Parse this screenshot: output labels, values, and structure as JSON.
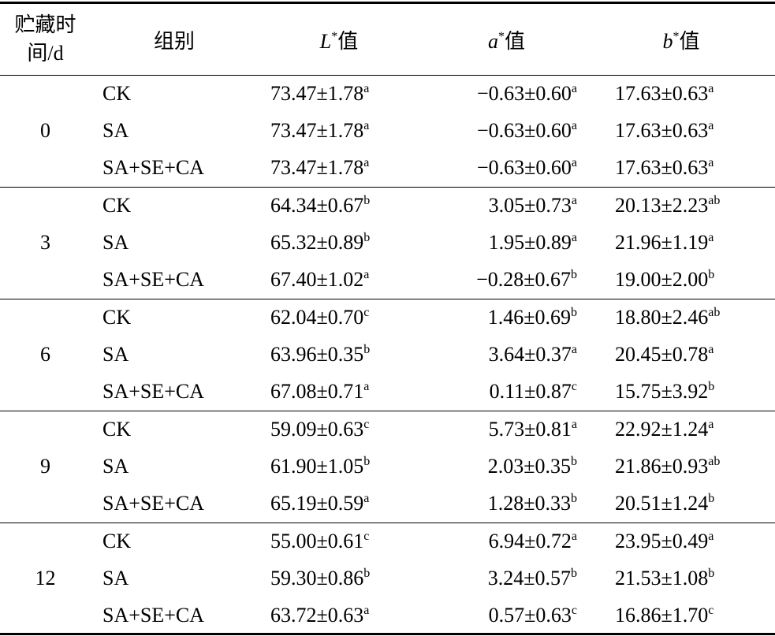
{
  "table": {
    "header": [
      {
        "text": "贮藏时间/d"
      },
      {
        "text": "组别"
      },
      {
        "var": "L",
        "sup": "*",
        "suffix": "值"
      },
      {
        "var": "a",
        "sup": "*",
        "suffix": "值"
      },
      {
        "var": "b",
        "sup": "*",
        "suffix": "值"
      }
    ],
    "groups": [
      {
        "time": "0",
        "rows": [
          {
            "group": "CK",
            "cells": [
              {
                "value": "73.47±1.78",
                "sig": "a"
              },
              {
                "value": "−0.63±0.60",
                "sig": "a"
              },
              {
                "value": "17.63±0.63",
                "sig": "a"
              }
            ]
          },
          {
            "group": "SA",
            "cells": [
              {
                "value": "73.47±1.78",
                "sig": "a"
              },
              {
                "value": "−0.63±0.60",
                "sig": "a"
              },
              {
                "value": "17.63±0.63",
                "sig": "a"
              }
            ]
          },
          {
            "group": "SA+SE+CA",
            "cells": [
              {
                "value": "73.47±1.78",
                "sig": "a"
              },
              {
                "value": "−0.63±0.60",
                "sig": "a"
              },
              {
                "value": "17.63±0.63",
                "sig": "a"
              }
            ]
          }
        ]
      },
      {
        "time": "3",
        "rows": [
          {
            "group": "CK",
            "cells": [
              {
                "value": "64.34±0.67",
                "sig": "b"
              },
              {
                "value": "3.05±0.73",
                "sig": "a"
              },
              {
                "value": "20.13±2.23",
                "sig": "ab"
              }
            ]
          },
          {
            "group": "SA",
            "cells": [
              {
                "value": "65.32±0.89",
                "sig": "b"
              },
              {
                "value": "1.95±0.89",
                "sig": "a"
              },
              {
                "value": "21.96±1.19",
                "sig": "a"
              }
            ]
          },
          {
            "group": "SA+SE+CA",
            "cells": [
              {
                "value": "67.40±1.02",
                "sig": "a"
              },
              {
                "value": "−0.28±0.67",
                "sig": "b"
              },
              {
                "value": "19.00±2.00",
                "sig": "b"
              }
            ]
          }
        ]
      },
      {
        "time": "6",
        "rows": [
          {
            "group": "CK",
            "cells": [
              {
                "value": "62.04±0.70",
                "sig": "c"
              },
              {
                "value": "1.46±0.69",
                "sig": "b"
              },
              {
                "value": "18.80±2.46",
                "sig": "ab"
              }
            ]
          },
          {
            "group": "SA",
            "cells": [
              {
                "value": "63.96±0.35",
                "sig": "b"
              },
              {
                "value": "3.64±0.37",
                "sig": "a"
              },
              {
                "value": "20.45±0.78",
                "sig": "a"
              }
            ]
          },
          {
            "group": "SA+SE+CA",
            "cells": [
              {
                "value": "67.08±0.71",
                "sig": "a"
              },
              {
                "value": "0.11±0.87",
                "sig": "c"
              },
              {
                "value": "15.75±3.92",
                "sig": "b"
              }
            ]
          }
        ]
      },
      {
        "time": "9",
        "rows": [
          {
            "group": "CK",
            "cells": [
              {
                "value": "59.09±0.63",
                "sig": "c"
              },
              {
                "value": "5.73±0.81",
                "sig": "a"
              },
              {
                "value": "22.92±1.24",
                "sig": "a"
              }
            ]
          },
          {
            "group": "SA",
            "cells": [
              {
                "value": "61.90±1.05",
                "sig": "b"
              },
              {
                "value": "2.03±0.35",
                "sig": "b"
              },
              {
                "value": "21.86±0.93",
                "sig": "ab"
              }
            ]
          },
          {
            "group": "SA+SE+CA",
            "cells": [
              {
                "value": "65.19±0.59",
                "sig": "a"
              },
              {
                "value": "1.28±0.33",
                "sig": "b"
              },
              {
                "value": "20.51±1.24",
                "sig": "b"
              }
            ]
          }
        ]
      },
      {
        "time": "12",
        "rows": [
          {
            "group": "CK",
            "cells": [
              {
                "value": "55.00±0.61",
                "sig": "c"
              },
              {
                "value": "6.94±0.72",
                "sig": "a"
              },
              {
                "value": "23.95±0.49",
                "sig": "a"
              }
            ]
          },
          {
            "group": "SA",
            "cells": [
              {
                "value": "59.30±0.86",
                "sig": "b"
              },
              {
                "value": "3.24±0.57",
                "sig": "b"
              },
              {
                "value": "21.53±1.08",
                "sig": "b"
              }
            ]
          },
          {
            "group": "SA+SE+CA",
            "cells": [
              {
                "value": "63.72±0.63",
                "sig": "a"
              },
              {
                "value": "0.57±0.63",
                "sig": "c"
              },
              {
                "value": "16.86±1.70",
                "sig": "c"
              }
            ]
          }
        ]
      }
    ]
  }
}
